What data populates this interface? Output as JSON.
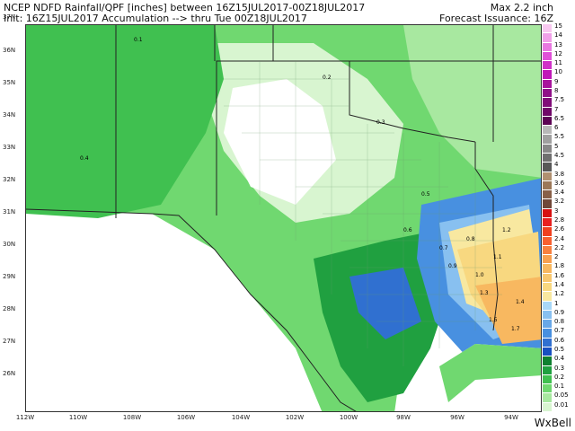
{
  "header": {
    "line1": "NCEP NDFD Rainfall/QPF [inches] between 16Z15JUL2017-00Z18JUL2017",
    "line2": "Init: 16Z15JUL2017 Accumulation --> thru Tue 00Z18JUL2017",
    "max_label": "Max 2.2 inch",
    "issuance": "Forecast Issuance: 16Z"
  },
  "axes": {
    "lat_labels": [
      "37N",
      "36N",
      "35N",
      "34N",
      "33N",
      "32N",
      "31N",
      "30N",
      "29N",
      "28N",
      "27N",
      "26N"
    ],
    "lon_labels": [
      "112W",
      "110W",
      "108W",
      "106W",
      "104W",
      "102W",
      "100W",
      "98W",
      "96W",
      "94W"
    ]
  },
  "legend": {
    "labels": [
      "15",
      "14",
      "13",
      "12",
      "11",
      "10",
      "9",
      "8",
      "7.5",
      "7",
      "6.5",
      "6",
      "5.5",
      "5",
      "4.5",
      "4",
      "3.8",
      "3.6",
      "3.4",
      "3.2",
      "3",
      "2.8",
      "2.6",
      "2.4",
      "2.2",
      "2",
      "1.8",
      "1.6",
      "1.4",
      "1.2",
      "1",
      "0.9",
      "0.8",
      "0.7",
      "0.6",
      "0.5",
      "0.4",
      "0.3",
      "0.2",
      "0.1",
      "0.05",
      "0.01"
    ],
    "colors": [
      "#f8c8f0",
      "#f0a0e8",
      "#e878e0",
      "#e050d8",
      "#d030c8",
      "#c018b8",
      "#a8149c",
      "#901088",
      "#800c78",
      "#700868",
      "#5c0454",
      "#b8b8b8",
      "#a0a0a0",
      "#888888",
      "#707070",
      "#585858",
      "#b09070",
      "#9c7858",
      "#886048",
      "#704838",
      "#d81010",
      "#e82020",
      "#f04020",
      "#f86030",
      "#f88040",
      "#f8a050",
      "#f8b860",
      "#f8c870",
      "#f8d880",
      "#f8e8a0",
      "#a8d8f8",
      "#88c0f0",
      "#68a8e8",
      "#4890e0",
      "#3070d0",
      "#1850c0",
      "#108030",
      "#20a040",
      "#40c050",
      "#70d870",
      "#a8e8a0",
      "#d8f5d0"
    ]
  },
  "map_labels": {
    "values": [
      "0.1",
      "0.2",
      "0.3",
      "0.4",
      "0.5",
      "0.6",
      "0.7",
      "0.8",
      "0.9",
      "1.0",
      "1.1",
      "1.2",
      "1.3",
      "1.4",
      "1.5",
      "1.7"
    ]
  },
  "brand": "WxBell"
}
